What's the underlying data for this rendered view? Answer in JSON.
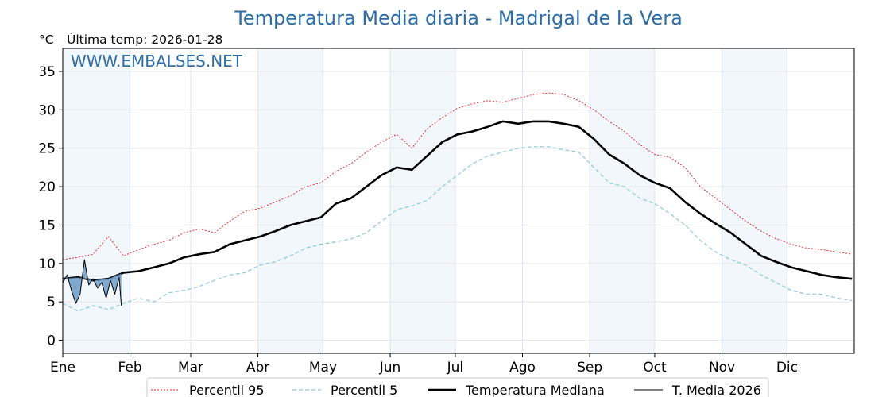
{
  "chart_data": {
    "type": "line",
    "title": "Temperatura Media diaria - Madrigal de la Vera",
    "unit_label": "°C",
    "last_temp_label": "Última temp: 2026-01-28",
    "watermark": "WWW.EMBALSES.NET",
    "ylim": [
      -1.7,
      38
    ],
    "yticks": [
      0,
      5,
      10,
      15,
      20,
      25,
      30,
      35
    ],
    "xlim": [
      1,
      366
    ],
    "months": [
      {
        "label": "Ene",
        "start": 1
      },
      {
        "label": "Feb",
        "start": 32
      },
      {
        "label": "Mar",
        "start": 60
      },
      {
        "label": "Abr",
        "start": 91
      },
      {
        "label": "May",
        "start": 121
      },
      {
        "label": "Jun",
        "start": 152
      },
      {
        "label": "Jul",
        "start": 182
      },
      {
        "label": "Ago",
        "start": 213
      },
      {
        "label": "Sep",
        "start": 244
      },
      {
        "label": "Oct",
        "start": 274
      },
      {
        "label": "Nov",
        "start": 305
      },
      {
        "label": "Dic",
        "start": 335
      }
    ],
    "shaded_months": [
      "Ene",
      "Abr",
      "Jun",
      "Sep",
      "Nov"
    ],
    "grid": true,
    "legend_placement": "bottom-center",
    "series": [
      {
        "name": "Percentil 95",
        "color": "#e41a1c",
        "style": "dotted",
        "x": [
          1,
          8,
          15,
          22,
          29,
          36,
          43,
          50,
          57,
          64,
          71,
          78,
          85,
          92,
          99,
          106,
          113,
          120,
          127,
          134,
          141,
          148,
          155,
          162,
          169,
          176,
          183,
          190,
          197,
          204,
          211,
          218,
          225,
          232,
          239,
          246,
          253,
          260,
          267,
          274,
          281,
          288,
          295,
          302,
          309,
          316,
          323,
          330,
          337,
          344,
          351,
          358,
          365
        ],
        "values": [
          10.5,
          10.8,
          11.2,
          13.5,
          11.0,
          11.8,
          12.5,
          13.0,
          14.0,
          14.5,
          14.0,
          15.5,
          16.8,
          17.2,
          18.0,
          18.8,
          20.0,
          20.5,
          22.0,
          23.0,
          24.5,
          25.8,
          26.8,
          25.0,
          27.5,
          29.0,
          30.2,
          30.8,
          31.2,
          31.0,
          31.5,
          32.0,
          32.2,
          32.0,
          31.2,
          30.0,
          28.5,
          27.2,
          25.5,
          24.2,
          23.8,
          22.5,
          20.0,
          18.5,
          17.0,
          15.5,
          14.2,
          13.2,
          12.5,
          12.0,
          11.8,
          11.5,
          11.2
        ]
      },
      {
        "name": "Percentil 5",
        "color": "#8ec8dc",
        "style": "dashed",
        "x": [
          1,
          8,
          15,
          22,
          29,
          36,
          43,
          50,
          57,
          64,
          71,
          78,
          85,
          92,
          99,
          106,
          113,
          120,
          127,
          134,
          141,
          148,
          155,
          162,
          169,
          176,
          183,
          190,
          197,
          204,
          211,
          218,
          225,
          232,
          239,
          246,
          253,
          260,
          267,
          274,
          281,
          288,
          295,
          302,
          309,
          316,
          323,
          330,
          337,
          344,
          351,
          358,
          365
        ],
        "values": [
          4.8,
          3.8,
          4.5,
          4.0,
          4.8,
          5.5,
          5.0,
          6.2,
          6.5,
          7.0,
          7.8,
          8.5,
          8.8,
          9.8,
          10.2,
          11.0,
          12.0,
          12.5,
          12.8,
          13.2,
          14.0,
          15.5,
          17.0,
          17.5,
          18.2,
          20.0,
          21.5,
          23.0,
          24.0,
          24.5,
          25.0,
          25.2,
          25.2,
          24.8,
          24.5,
          22.5,
          20.5,
          20.0,
          18.5,
          17.8,
          16.5,
          15.0,
          13.0,
          11.5,
          10.5,
          9.8,
          8.5,
          7.5,
          6.5,
          6.0,
          6.0,
          5.5,
          5.2
        ]
      },
      {
        "name": "Temperatura Mediana",
        "color": "#000000",
        "style": "solid-thick",
        "x": [
          1,
          8,
          15,
          22,
          29,
          36,
          43,
          50,
          57,
          64,
          71,
          78,
          85,
          92,
          99,
          106,
          113,
          120,
          127,
          134,
          141,
          148,
          155,
          162,
          169,
          176,
          183,
          190,
          197,
          204,
          211,
          218,
          225,
          232,
          239,
          246,
          253,
          260,
          267,
          274,
          281,
          288,
          295,
          302,
          309,
          316,
          323,
          330,
          337,
          344,
          351,
          358,
          365
        ],
        "values": [
          8.0,
          8.2,
          7.8,
          8.0,
          8.8,
          9.0,
          9.5,
          10.0,
          10.8,
          11.2,
          11.5,
          12.5,
          13.0,
          13.5,
          14.2,
          15.0,
          15.5,
          16.0,
          17.8,
          18.5,
          20.0,
          21.5,
          22.5,
          22.2,
          24.0,
          25.8,
          26.8,
          27.2,
          27.8,
          28.5,
          28.2,
          28.5,
          28.5,
          28.2,
          27.8,
          26.2,
          24.2,
          23.0,
          21.5,
          20.5,
          19.8,
          18.0,
          16.5,
          15.2,
          14.0,
          12.5,
          11.0,
          10.2,
          9.5,
          9.0,
          8.5,
          8.2,
          8.0
        ]
      },
      {
        "name": "T. Media 2026",
        "color": "#000000",
        "fill": "#6e9cc8",
        "style": "solid-thin",
        "x": [
          1,
          3,
          5,
          7,
          9,
          11,
          13,
          15,
          17,
          19,
          21,
          23,
          25,
          27,
          28
        ],
        "values": [
          7.5,
          8.5,
          6.5,
          4.8,
          6.0,
          10.5,
          7.2,
          8.0,
          6.8,
          7.5,
          5.5,
          7.8,
          6.0,
          8.2,
          4.5
        ]
      }
    ]
  }
}
